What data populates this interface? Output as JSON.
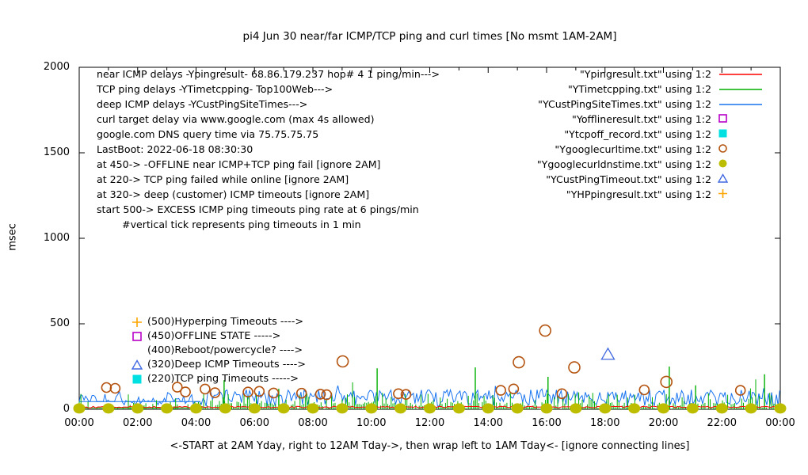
{
  "title": "pi4 Jun 30  near/far ICMP/TCP ping and curl times [No msmt 1AM-2AM]",
  "y_axis": {
    "label": "msec",
    "ticks": [
      "0",
      "500",
      "1000",
      "1500",
      "2000"
    ]
  },
  "x_axis": {
    "label": "<-START at 2AM Yday, right to 12AM Tday->, then wrap left to 1AM Tday<- [ignore connecting lines]",
    "ticks": [
      "00:00",
      "02:00",
      "04:00",
      "06:00",
      "08:00",
      "10:00",
      "12:00",
      "14:00",
      "16:00",
      "18:00",
      "20:00",
      "22:00",
      "00:00"
    ]
  },
  "annotations": [
    "near ICMP delays -Ypingresult- 68.86.179.237 hop# 4 1 ping/min--->",
    "TCP ping delays -YTimetcpping- Top100Web--->",
    "deep ICMP delays -YCustPingSiteTimes--->",
    "curl target delay via www.google.com (max 4s allowed)",
    "google.com DNS query time via 75.75.75.75",
    "LastBoot: 2022-06-18 08:30:30",
    "at 450-> -OFFLINE near ICMP+TCP ping fail [ignore 2AM]",
    "at 220-> TCP ping failed while online [ignore 2AM]",
    "at 320-> deep (customer) ICMP timeouts [ignore 2AM]",
    "start 500-> EXCESS ICMP ping timeouts ping rate at 6 pings/min",
    "        #vertical tick represents ping timeouts in 1 min"
  ],
  "legend": [
    {
      "label": "\"Ypingresult.txt\" using 1:2",
      "swatch": "line",
      "color": "#ff0000"
    },
    {
      "label": "\"YTimetcpping.txt\" using 1:2",
      "swatch": "line",
      "color": "#00b000"
    },
    {
      "label": "\"YCustPingSiteTimes.txt\" using 1:2",
      "swatch": "line",
      "color": "#1874f0"
    },
    {
      "label": "\"Yofflineresult.txt\" using 1:2",
      "swatch": "open-square",
      "color": "#b800c8"
    },
    {
      "label": "\"Ytcpoff_record.txt\" using 1:2",
      "swatch": "filled-square",
      "color": "#00e0e0"
    },
    {
      "label": "\"Ygooglecurltime.txt\" using 1:2",
      "swatch": "open-circle",
      "color": "#b4530f"
    },
    {
      "label": "\"Ygooglecurldnstime.txt\" using 1:2",
      "swatch": "filled-circle",
      "color": "#bdbd00"
    },
    {
      "label": "\"YCustPingTimeout.txt\" using 1:2",
      "swatch": "open-triangle",
      "color": "#4169e1"
    },
    {
      "label": "\"YHPpingresult.txt\" using 1:2",
      "swatch": "plus",
      "color": "#ffa500"
    }
  ],
  "callouts": [
    {
      "marker": "plus",
      "color": "#ffa500",
      "label": "(500)Hyperping Timeouts ---->"
    },
    {
      "marker": "open-square",
      "color": "#b800c8",
      "label": "(450)OFFLINE STATE ----->"
    },
    {
      "marker": "none",
      "color": "",
      "label": "(400)Reboot/powercycle? ---->"
    },
    {
      "marker": "open-triangle",
      "color": "#4169e1",
      "label": "(320)Deep ICMP Timeouts ---->"
    },
    {
      "marker": "filled-square",
      "color": "#00e0e0",
      "label": "(220)TCP ping Timeouts ----->"
    }
  ],
  "chart_data": {
    "type": "line",
    "title": "pi4 Jun 30  near/far ICMP/TCP ping and curl times [No msmt 1AM-2AM]",
    "xlabel": "<-START at 2AM Yday, right to 12AM Tday->, then wrap left to 1AM Tday<- [ignore connecting lines]",
    "ylabel": "msec",
    "x_range_hours": [
      0,
      24
    ],
    "ylim": [
      0,
      2000
    ],
    "x_tick_hours": [
      0,
      2,
      4,
      6,
      8,
      10,
      12,
      14,
      16,
      18,
      20,
      22,
      24
    ],
    "y_ticks": [
      0,
      500,
      1000,
      1500,
      2000
    ],
    "legend_position": "top-right",
    "grid": false,
    "series": [
      {
        "name": "Ypingresult.txt",
        "style": "line",
        "color": "#ff0000",
        "summary": "near ICMP ping, flat ~8-18 msec across all 24h",
        "noise": {
          "base": 8,
          "amp": 10,
          "step": 0.08
        }
      },
      {
        "name": "YTimetcpping.txt",
        "style": "impulses",
        "color": "#00b000",
        "summary": "TCP ping, dense spikes 0-100 msec",
        "noise": {
          "min": 0,
          "max": 100,
          "step": 0.06
        },
        "spikes": [
          [
            4.96,
            170
          ],
          [
            6.83,
            120
          ],
          [
            10.2,
            240
          ],
          [
            13.56,
            245
          ],
          [
            16.05,
            190
          ],
          [
            20.2,
            250
          ],
          [
            21.1,
            140
          ],
          [
            23.46,
            205
          ]
        ]
      },
      {
        "name": "YCustPingSiteTimes.txt",
        "style": "line",
        "color": "#1874f0",
        "summary": "deep ICMP, dense band 18-120 msec",
        "noise": {
          "min": 18,
          "max": 115,
          "step": 0.055
        },
        "flat_segment": {
          "from_hour": 0,
          "to_hour": 4.15,
          "value": 45
        }
      },
      {
        "name": "Yofflineresult.txt",
        "style": "points-open-square",
        "color": "#b800c8",
        "points": []
      },
      {
        "name": "Ytcpoff_record.txt",
        "style": "points-filled-square",
        "color": "#00e0e0",
        "points": []
      },
      {
        "name": "Ygooglecurltime.txt",
        "style": "points-open-circle",
        "color": "#b4530f",
        "summary": "curl times, scattered ~85-130 msec plus outliers",
        "typical_band": [
          85,
          130
        ],
        "outliers": [
          [
            9.02,
            280
          ],
          [
            15.05,
            275
          ],
          [
            15.95,
            460
          ],
          [
            16.95,
            245
          ],
          [
            20.1,
            160
          ]
        ]
      },
      {
        "name": "Ygooglecurldnstime.txt",
        "style": "points-filled-circle",
        "color": "#bdbd00",
        "summary": "DNS query time, one dot per hour at ~5 msec",
        "hourly_value": 5
      },
      {
        "name": "YCustPingTimeout.txt",
        "style": "points-open-triangle",
        "color": "#4169e1",
        "points": [
          [
            18.1,
            320
          ]
        ]
      },
      {
        "name": "YHPpingresult.txt",
        "style": "points-plus",
        "color": "#ffa500",
        "points": []
      }
    ]
  }
}
